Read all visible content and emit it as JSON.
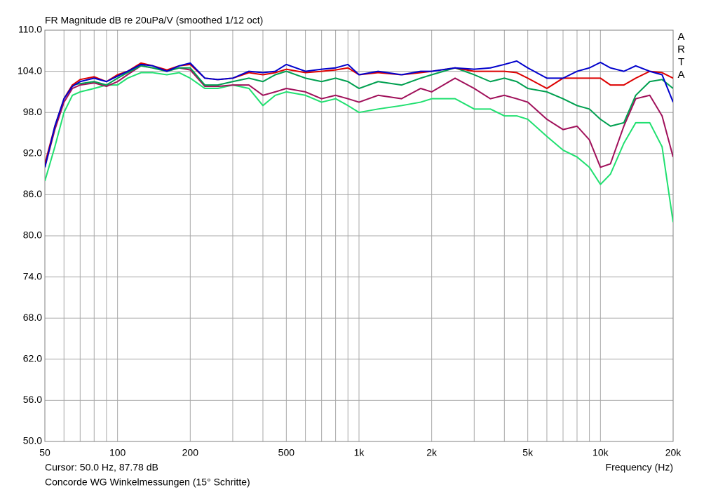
{
  "chart_data": {
    "type": "line",
    "title": "FR Magnitude dB re 20uPa/V (smoothed 1/12 oct)",
    "watermark": "ARTA",
    "cursor": "Cursor: 50.0 Hz, 87.78 dB",
    "xlabel": "Frequency (Hz)",
    "caption": "Concorde WG Winkelmessungen (15° Schritte)",
    "xscale": "log",
    "grid": true,
    "xlim": [
      50,
      20000
    ],
    "ylim": [
      50,
      110
    ],
    "xticks": [
      50,
      100,
      200,
      500,
      {
        "value": 1000,
        "label": "1k"
      },
      {
        "value": 2000,
        "label": "2k"
      },
      {
        "value": 5000,
        "label": "5k"
      },
      {
        "value": 10000,
        "label": "10k"
      },
      {
        "value": 20000,
        "label": "20k"
      }
    ],
    "xminor": [
      60,
      70,
      80,
      90,
      300,
      400,
      600,
      700,
      800,
      900,
      3000,
      4000,
      6000,
      7000,
      8000,
      9000
    ],
    "yticks": [
      {
        "value": 50,
        "label": "50.0"
      },
      {
        "value": 56,
        "label": "56.0"
      },
      {
        "value": 62,
        "label": "62.0"
      },
      {
        "value": 68,
        "label": "68.0"
      },
      {
        "value": 74,
        "label": "74.0"
      },
      {
        "value": 80,
        "label": "80.0"
      },
      {
        "value": 86,
        "label": "86.0"
      },
      {
        "value": 92,
        "label": "92.0"
      },
      {
        "value": 98,
        "label": "98.0"
      },
      {
        "value": 104,
        "label": "104.0"
      },
      {
        "value": 110,
        "label": "110.0"
      }
    ],
    "x": [
      50,
      55,
      60,
      65,
      70,
      80,
      90,
      100,
      110,
      125,
      140,
      160,
      180,
      200,
      230,
      260,
      300,
      350,
      400,
      450,
      500,
      600,
      700,
      800,
      900,
      1000,
      1200,
      1500,
      1800,
      2000,
      2500,
      3000,
      3500,
      4000,
      4500,
      5000,
      6000,
      7000,
      8000,
      9000,
      10000,
      11000,
      12500,
      14000,
      16000,
      18000,
      20000
    ],
    "series": [
      {
        "color": "#20e070",
        "values": [
          88,
          93,
          98,
          100.5,
          101,
          101.5,
          102,
          102,
          103,
          103.8,
          103.8,
          103.5,
          103.8,
          103,
          101.5,
          101.5,
          102,
          101.5,
          99,
          100.5,
          101,
          100.5,
          99.5,
          100,
          99,
          98,
          98.5,
          99,
          99.5,
          100,
          100,
          98.5,
          98.5,
          97.5,
          97.5,
          97,
          94.5,
          92.5,
          91.5,
          90,
          87.5,
          89,
          93.5,
          96.5,
          96.5,
          93,
          82
        ]
      },
      {
        "color": "#a0105a",
        "values": [
          90,
          95.5,
          99.5,
          101.5,
          102,
          102.3,
          101.8,
          102.5,
          103.5,
          104.8,
          104.5,
          104,
          104.5,
          104.2,
          101.8,
          101.8,
          102,
          102,
          100.5,
          101,
          101.5,
          101,
          100,
          100.5,
          100,
          99.5,
          100.5,
          100,
          101.5,
          101,
          103,
          101.5,
          100,
          100.5,
          100,
          99.5,
          97,
          95.5,
          96,
          94,
          90,
          90.5,
          96,
          100,
          100.5,
          97.5,
          91.5
        ]
      },
      {
        "color": "#00a050",
        "values": [
          90,
          96,
          100,
          102,
          102.2,
          102.5,
          102,
          103,
          103.8,
          104.8,
          104.5,
          104,
          104.5,
          104.5,
          102,
          102,
          102.5,
          103,
          102.5,
          103.5,
          104,
          103,
          102.5,
          103,
          102.5,
          101.5,
          102.5,
          102,
          103,
          103.5,
          104.5,
          103.5,
          102.5,
          103,
          102.5,
          101.5,
          101,
          100,
          99,
          98.5,
          97,
          96,
          96.5,
          100.5,
          102.5,
          102.8,
          101.5
        ]
      },
      {
        "color": "#dd0000",
        "values": [
          90.5,
          96,
          100,
          102,
          102.8,
          103.2,
          102.5,
          103.5,
          104,
          105.2,
          104.8,
          104.2,
          104.8,
          105,
          103,
          102.8,
          103,
          103.8,
          103.5,
          103.8,
          104.3,
          103.8,
          104,
          104.2,
          104.5,
          103.5,
          103.8,
          103.5,
          103.8,
          104,
          104.5,
          104,
          104,
          104,
          103.8,
          103,
          101.5,
          103,
          103,
          103,
          103,
          102,
          102,
          103,
          104,
          103.8,
          103
        ]
      },
      {
        "color": "#0000cc",
        "values": [
          90,
          96,
          100,
          101.8,
          102.5,
          103,
          102.5,
          103.3,
          104,
          105,
          104.8,
          104,
          104.8,
          105.2,
          103,
          102.8,
          103,
          104,
          103.8,
          104,
          105,
          104,
          104.3,
          104.5,
          105,
          103.5,
          104,
          103.5,
          104,
          104,
          104.5,
          104.3,
          104.5,
          105,
          105.5,
          104.5,
          103,
          103,
          104,
          104.5,
          105.3,
          104.5,
          104,
          104.8,
          104,
          103.5,
          99.5
        ]
      }
    ]
  }
}
